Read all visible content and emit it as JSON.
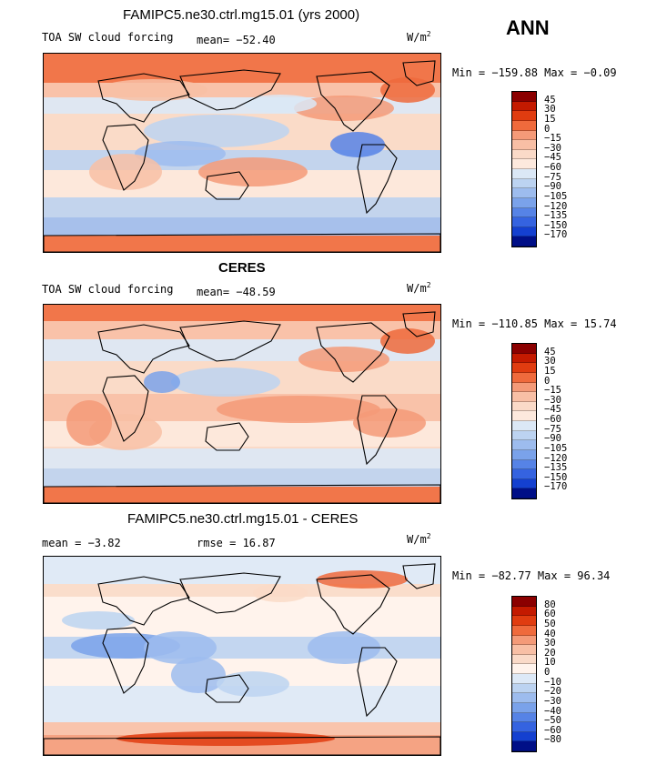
{
  "header": {
    "season": "ANN"
  },
  "chart_data": [
    {
      "type": "heatmap",
      "title": "FAMIPC5.ne30.ctrl.mg15.01 (yrs 2000)",
      "field": "TOA SW cloud forcing",
      "units_base": "W/m",
      "units_exp": "2",
      "mean_text": "mean=  −52.40",
      "minmax_text": "Min = −159.88 Max =  −0.09",
      "min": -159.88,
      "max": -0.09,
      "mean": -52.4,
      "levels": [
        "45",
        "30",
        "15",
        "0",
        "−15",
        "−30",
        "−45",
        "−60",
        "−75",
        "−90",
        "−105",
        "−120",
        "−135",
        "−150",
        "−170"
      ],
      "colors": [
        "#8b0000",
        "#c41a00",
        "#e03c10",
        "#ef6a3c",
        "#f49a78",
        "#f8bfa5",
        "#fadac8",
        "#fde9dd",
        "#dbe8f6",
        "#bcd3f1",
        "#9dbcee",
        "#7aa2ea",
        "#5683e6",
        "#3563e0",
        "#1440d0",
        "#000f87"
      ]
    },
    {
      "type": "heatmap",
      "title": "CERES",
      "field": "TOA SW cloud forcing",
      "units_base": "W/m",
      "units_exp": "2",
      "mean_text": "mean=  −48.59",
      "minmax_text": "Min = −110.85 Max =  15.74",
      "min": -110.85,
      "max": 15.74,
      "mean": -48.59,
      "levels": [
        "45",
        "30",
        "15",
        "0",
        "−15",
        "−30",
        "−45",
        "−60",
        "−75",
        "−90",
        "−105",
        "−120",
        "−135",
        "−150",
        "−170"
      ],
      "colors": [
        "#8b0000",
        "#c41a00",
        "#e03c10",
        "#ef6a3c",
        "#f49a78",
        "#f8bfa5",
        "#fadac8",
        "#fde9dd",
        "#dbe8f6",
        "#bcd3f1",
        "#9dbcee",
        "#7aa2ea",
        "#5683e6",
        "#3563e0",
        "#1440d0",
        "#000f87"
      ]
    },
    {
      "type": "heatmap",
      "title": "FAMIPC5.ne30.ctrl.mg15.01 - CERES",
      "mean_text": "mean =   −3.82",
      "rmse_text": "rmse =   16.87",
      "units_base": "W/m",
      "units_exp": "2",
      "minmax_text": "Min = −82.77 Max =  96.34",
      "min": -82.77,
      "max": 96.34,
      "mean": -3.82,
      "rmse": 16.87,
      "levels": [
        "80",
        "60",
        "50",
        "40",
        "30",
        "20",
        "10",
        "0",
        "−10",
        "−20",
        "−30",
        "−40",
        "−50",
        "−60",
        "−80"
      ],
      "colors": [
        "#8b0000",
        "#c41a00",
        "#e03c10",
        "#ef6a3c",
        "#f49a78",
        "#f8bfa5",
        "#fadac8",
        "#fff3ec",
        "#dde9f7",
        "#bcd3f1",
        "#9dbcee",
        "#7aa2ea",
        "#5683e6",
        "#3563e0",
        "#1440d0",
        "#000f87"
      ]
    }
  ]
}
